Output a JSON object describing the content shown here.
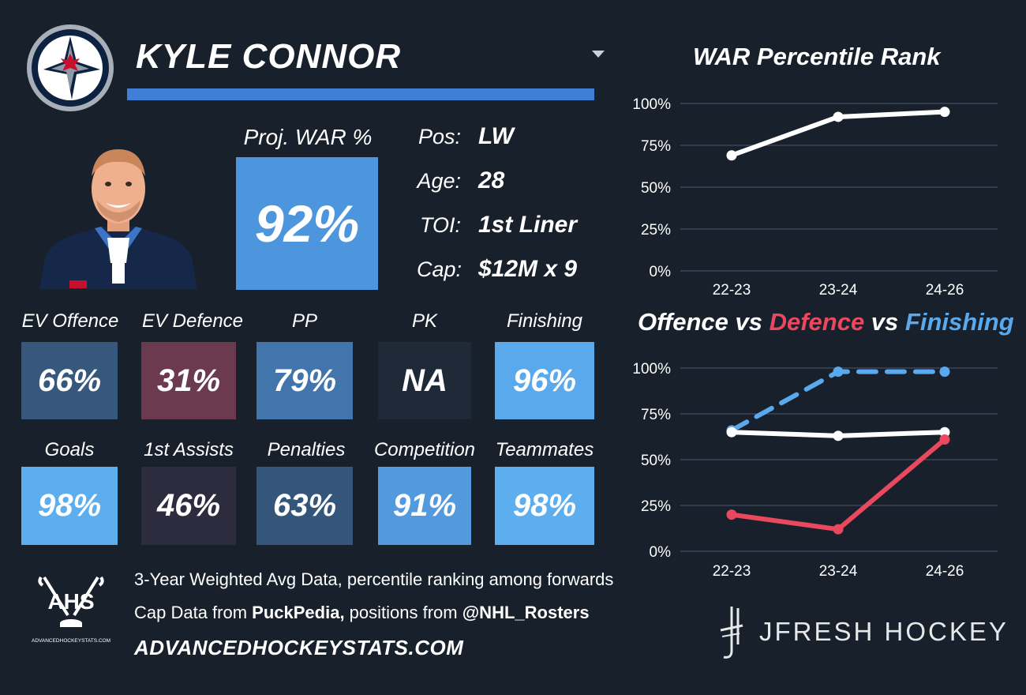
{
  "player": {
    "name": "KYLE CONNOR",
    "proj_war_label": "Proj. WAR %",
    "proj_war_value": "92%",
    "info": [
      {
        "label": "Pos:",
        "value": "LW"
      },
      {
        "label": "Age:",
        "value": "28"
      },
      {
        "label": "TOI:",
        "value": "1st Liner"
      },
      {
        "label": "Cap:",
        "value": "$12M x 9"
      }
    ]
  },
  "tiles": [
    {
      "label": "EV Offence",
      "value": "66%",
      "color": "#36587c"
    },
    {
      "label": "EV Defence",
      "value": "31%",
      "color": "#6b3a4e"
    },
    {
      "label": "PP",
      "value": "79%",
      "color": "#4275ab"
    },
    {
      "label": "PK",
      "value": "NA",
      "color": "#1e2a38"
    },
    {
      "label": "Finishing",
      "value": "96%",
      "color": "#5aa9ec"
    },
    {
      "label": "Goals",
      "value": "98%",
      "color": "#5caeef"
    },
    {
      "label": "1st Assists",
      "value": "46%",
      "color": "#2c2c3e"
    },
    {
      "label": "Penalties",
      "value": "63%",
      "color": "#33567a"
    },
    {
      "label": "Competition",
      "value": "91%",
      "color": "#5399dd"
    },
    {
      "label": "Teammates",
      "value": "98%",
      "color": "#5caeef"
    }
  ],
  "footer": {
    "line1": "3-Year Weighted Avg Data, percentile ranking among forwards",
    "line2_prefix": "Cap Data from ",
    "line2_bold1": "PuckPedia,",
    "line2_mid": " positions from ",
    "line2_bold2": "@NHL_Rosters",
    "site": "ADVANCEDHOCKEYSTATS.COM",
    "ahs_logo_text": "AHS",
    "ahs_logo_url": "ADVANCEDHOCKEYSTATS.COM",
    "brand": "JFRESH HOCKEY"
  },
  "colors": {
    "offence": "#ffffff",
    "defence": "#e9485f",
    "finishing": "#5aa9ec",
    "background": "#18202b",
    "accent": "#3f7fd6"
  },
  "chart_data": [
    {
      "type": "line",
      "title": "WAR Percentile Rank",
      "categories": [
        "22-23",
        "23-24",
        "24-26"
      ],
      "series": [
        {
          "values": [
            69,
            92,
            95
          ]
        }
      ],
      "ylim": [
        0,
        100
      ],
      "yticks": [
        "100%",
        "75%",
        "50%",
        "25%",
        "0%"
      ],
      "grid": true
    },
    {
      "type": "line",
      "title_parts": [
        "Offence",
        " vs ",
        "Defence",
        " vs ",
        "Finishing"
      ],
      "categories": [
        "22-23",
        "23-24",
        "24-26"
      ],
      "series": [
        {
          "name": "Finishing",
          "values": [
            66,
            98,
            98
          ],
          "style": "dashed"
        },
        {
          "name": "Offence",
          "values": [
            65,
            63,
            65
          ],
          "style": "solid"
        },
        {
          "name": "Defence",
          "values": [
            20,
            12,
            61
          ],
          "style": "solid"
        }
      ],
      "ylim": [
        0,
        100
      ],
      "yticks": [
        "100%",
        "75%",
        "50%",
        "25%",
        "0%"
      ],
      "grid": true
    }
  ]
}
